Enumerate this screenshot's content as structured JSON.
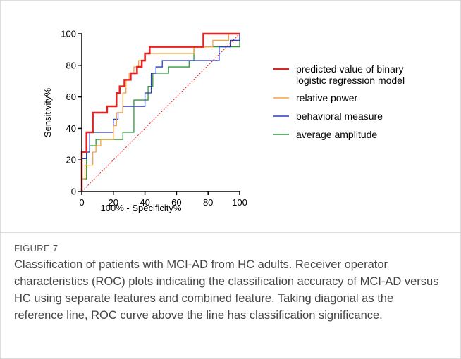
{
  "chart_data": {
    "type": "line",
    "xlabel": "100% - Specificity%",
    "ylabel": "Sensitivity%",
    "xlim": [
      0,
      100
    ],
    "ylim": [
      0,
      100
    ],
    "xticks": [
      0,
      20,
      40,
      60,
      80,
      100
    ],
    "yticks": [
      0,
      20,
      40,
      60,
      80,
      100
    ],
    "series": [
      {
        "name": "predicted value of binary logistic regression model",
        "color": "#e8201f",
        "x": [
          0,
          0,
          3,
          3,
          7,
          7,
          16,
          16,
          22,
          22,
          24,
          24,
          27,
          27,
          31,
          31,
          35,
          35,
          38,
          38,
          40,
          40,
          43,
          43,
          77,
          77,
          100
        ],
        "y": [
          0,
          25,
          25,
          37.5,
          37.5,
          50,
          50,
          54,
          54,
          62.5,
          62.5,
          66.7,
          66.7,
          70.8,
          70.8,
          75,
          75,
          79,
          79,
          83,
          83,
          87.5,
          87.5,
          91.7,
          91.7,
          100,
          100
        ]
      },
      {
        "name": "relative power",
        "color": "#f4a340",
        "x": [
          0,
          0,
          2,
          2,
          7,
          7,
          9,
          9,
          12,
          12,
          20,
          20,
          22,
          22,
          26,
          26,
          28,
          28,
          30,
          30,
          33,
          33,
          36,
          36,
          40,
          40,
          71,
          71,
          83,
          83,
          93,
          93,
          100
        ],
        "y": [
          0,
          8,
          8,
          16.7,
          16.7,
          25,
          25,
          29,
          29,
          33,
          33,
          41.7,
          41.7,
          50,
          50,
          62.5,
          62.5,
          70.8,
          70.8,
          75,
          75,
          79,
          79,
          83,
          83,
          87.5,
          87.5,
          91.7,
          91.7,
          95.8,
          95.8,
          100,
          100
        ]
      },
      {
        "name": "behavioral measure",
        "color": "#2a3cbf",
        "x": [
          0,
          0,
          3,
          3,
          5,
          5,
          20,
          20,
          23,
          23,
          26,
          26,
          40,
          40,
          44,
          44,
          47,
          47,
          51,
          51,
          87,
          87,
          94,
          94,
          100,
          100
        ],
        "y": [
          0,
          20.8,
          20.8,
          25,
          25,
          37.5,
          37.5,
          45.8,
          45.8,
          50,
          50,
          54,
          54,
          62.5,
          62.5,
          75,
          75,
          79,
          79,
          83,
          83,
          91.7,
          91.7,
          95.8,
          95.8,
          100
        ]
      },
      {
        "name": "average amplitude",
        "color": "#2d9a3a",
        "x": [
          0,
          0,
          3,
          3,
          5,
          5,
          9,
          9,
          26,
          26,
          33,
          33,
          42,
          42,
          45,
          45,
          55,
          55,
          68,
          68,
          71,
          71,
          100,
          100
        ],
        "y": [
          0,
          8,
          8,
          25,
          25,
          29,
          29,
          33,
          33,
          37.5,
          37.5,
          58,
          58,
          66.7,
          66.7,
          75,
          75,
          79,
          79,
          83,
          83,
          91.7,
          91.7,
          100
        ]
      }
    ]
  },
  "figure": {
    "label": "FIGURE 7",
    "caption": "Classification of patients with MCI-AD from HC adults. Receiver operator characteristics (ROC) plots indicating the classification accuracy of MCI-AD versus HC using separate features and combined feature. Taking diagonal as the reference line, ROC curve above the line has classification significance."
  }
}
